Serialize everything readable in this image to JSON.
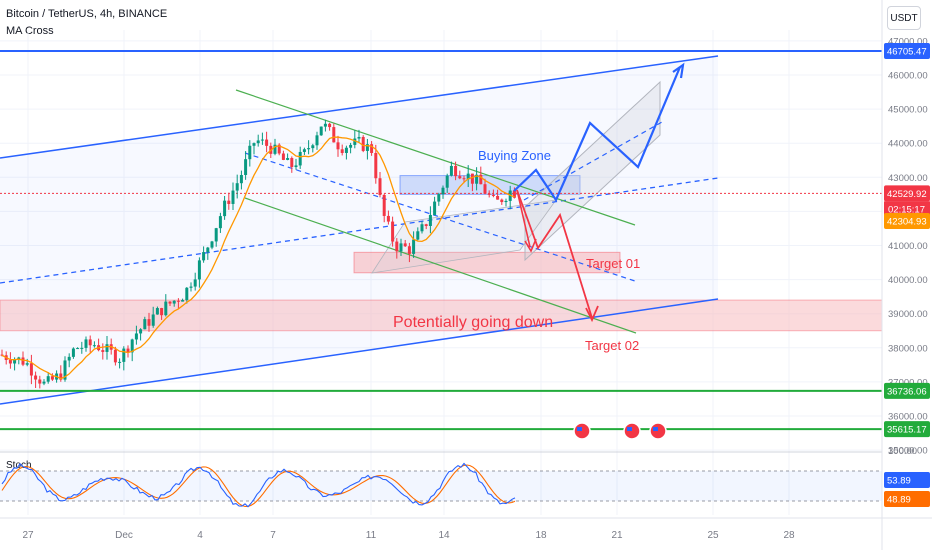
{
  "header": {
    "symbol_line": "Bitcoin / TetherUS, 4h, BINANCE",
    "indicator": "MA Cross"
  },
  "currency_button": "USDT",
  "oscillator": {
    "name": "Stoch",
    "value_k": "53.89",
    "value_d": "48.89",
    "scale_top": "100.00",
    "upper_band": 80,
    "lower_band": 20
  },
  "price_tags": [
    {
      "label": "46705.47",
      "price": 46705.47,
      "color": "#2962ff"
    },
    {
      "label": "42529.92",
      "price": 42529.92,
      "color": "#f23645",
      "countdown": "02:15:17"
    },
    {
      "label": "42304.93",
      "price": 42304.93,
      "color": "#ff9800"
    },
    {
      "label": "36736.06",
      "price": 36736.06,
      "color": "#22ab3b"
    },
    {
      "label": "35615.17",
      "price": 35615.17,
      "color": "#22ab3b"
    }
  ],
  "annotations": {
    "buying_zone": "Buying Zone",
    "target_01": "Target 01",
    "target_02": "Target 02",
    "potential_down": "Potentially going down"
  },
  "colors": {
    "up": "#089981",
    "down": "#f23645",
    "ma": "#ff9800",
    "channel": "#2962ff",
    "green_line": "#4caf50",
    "horizontal_green": "#22ab3b",
    "zone_red": "#f8bbc0",
    "zone_blue": "#b3c6f7",
    "stoch_k": "#2962ff",
    "stoch_d": "#ff6d00"
  },
  "chart_data": {
    "type": "candlestick",
    "y_axis": {
      "min": 35000,
      "max": 47000,
      "ticks": [
        35000,
        36000,
        37000,
        38000,
        39000,
        40000,
        41000,
        42000,
        43000,
        44000,
        45000,
        46000,
        47000
      ]
    },
    "x_axis": {
      "labels": [
        "27",
        "Dec",
        "4",
        "7",
        "11",
        "14",
        "18",
        "21",
        "25",
        "28"
      ]
    },
    "horizontal_lines": [
      46705.47,
      36736.06,
      35615.17
    ],
    "current_price": 42529.92,
    "ma_value": 42304.93,
    "zones": [
      {
        "name": "Buying Zone",
        "low": 42500,
        "high": 43050
      },
      {
        "name": "Target 01",
        "low": 40200,
        "high": 40800
      },
      {
        "name": "Potentially going down",
        "low": 38500,
        "high": 39400
      }
    ],
    "stoch": {
      "k": 53.89,
      "d": 48.89,
      "range": [
        0,
        100
      ]
    }
  }
}
